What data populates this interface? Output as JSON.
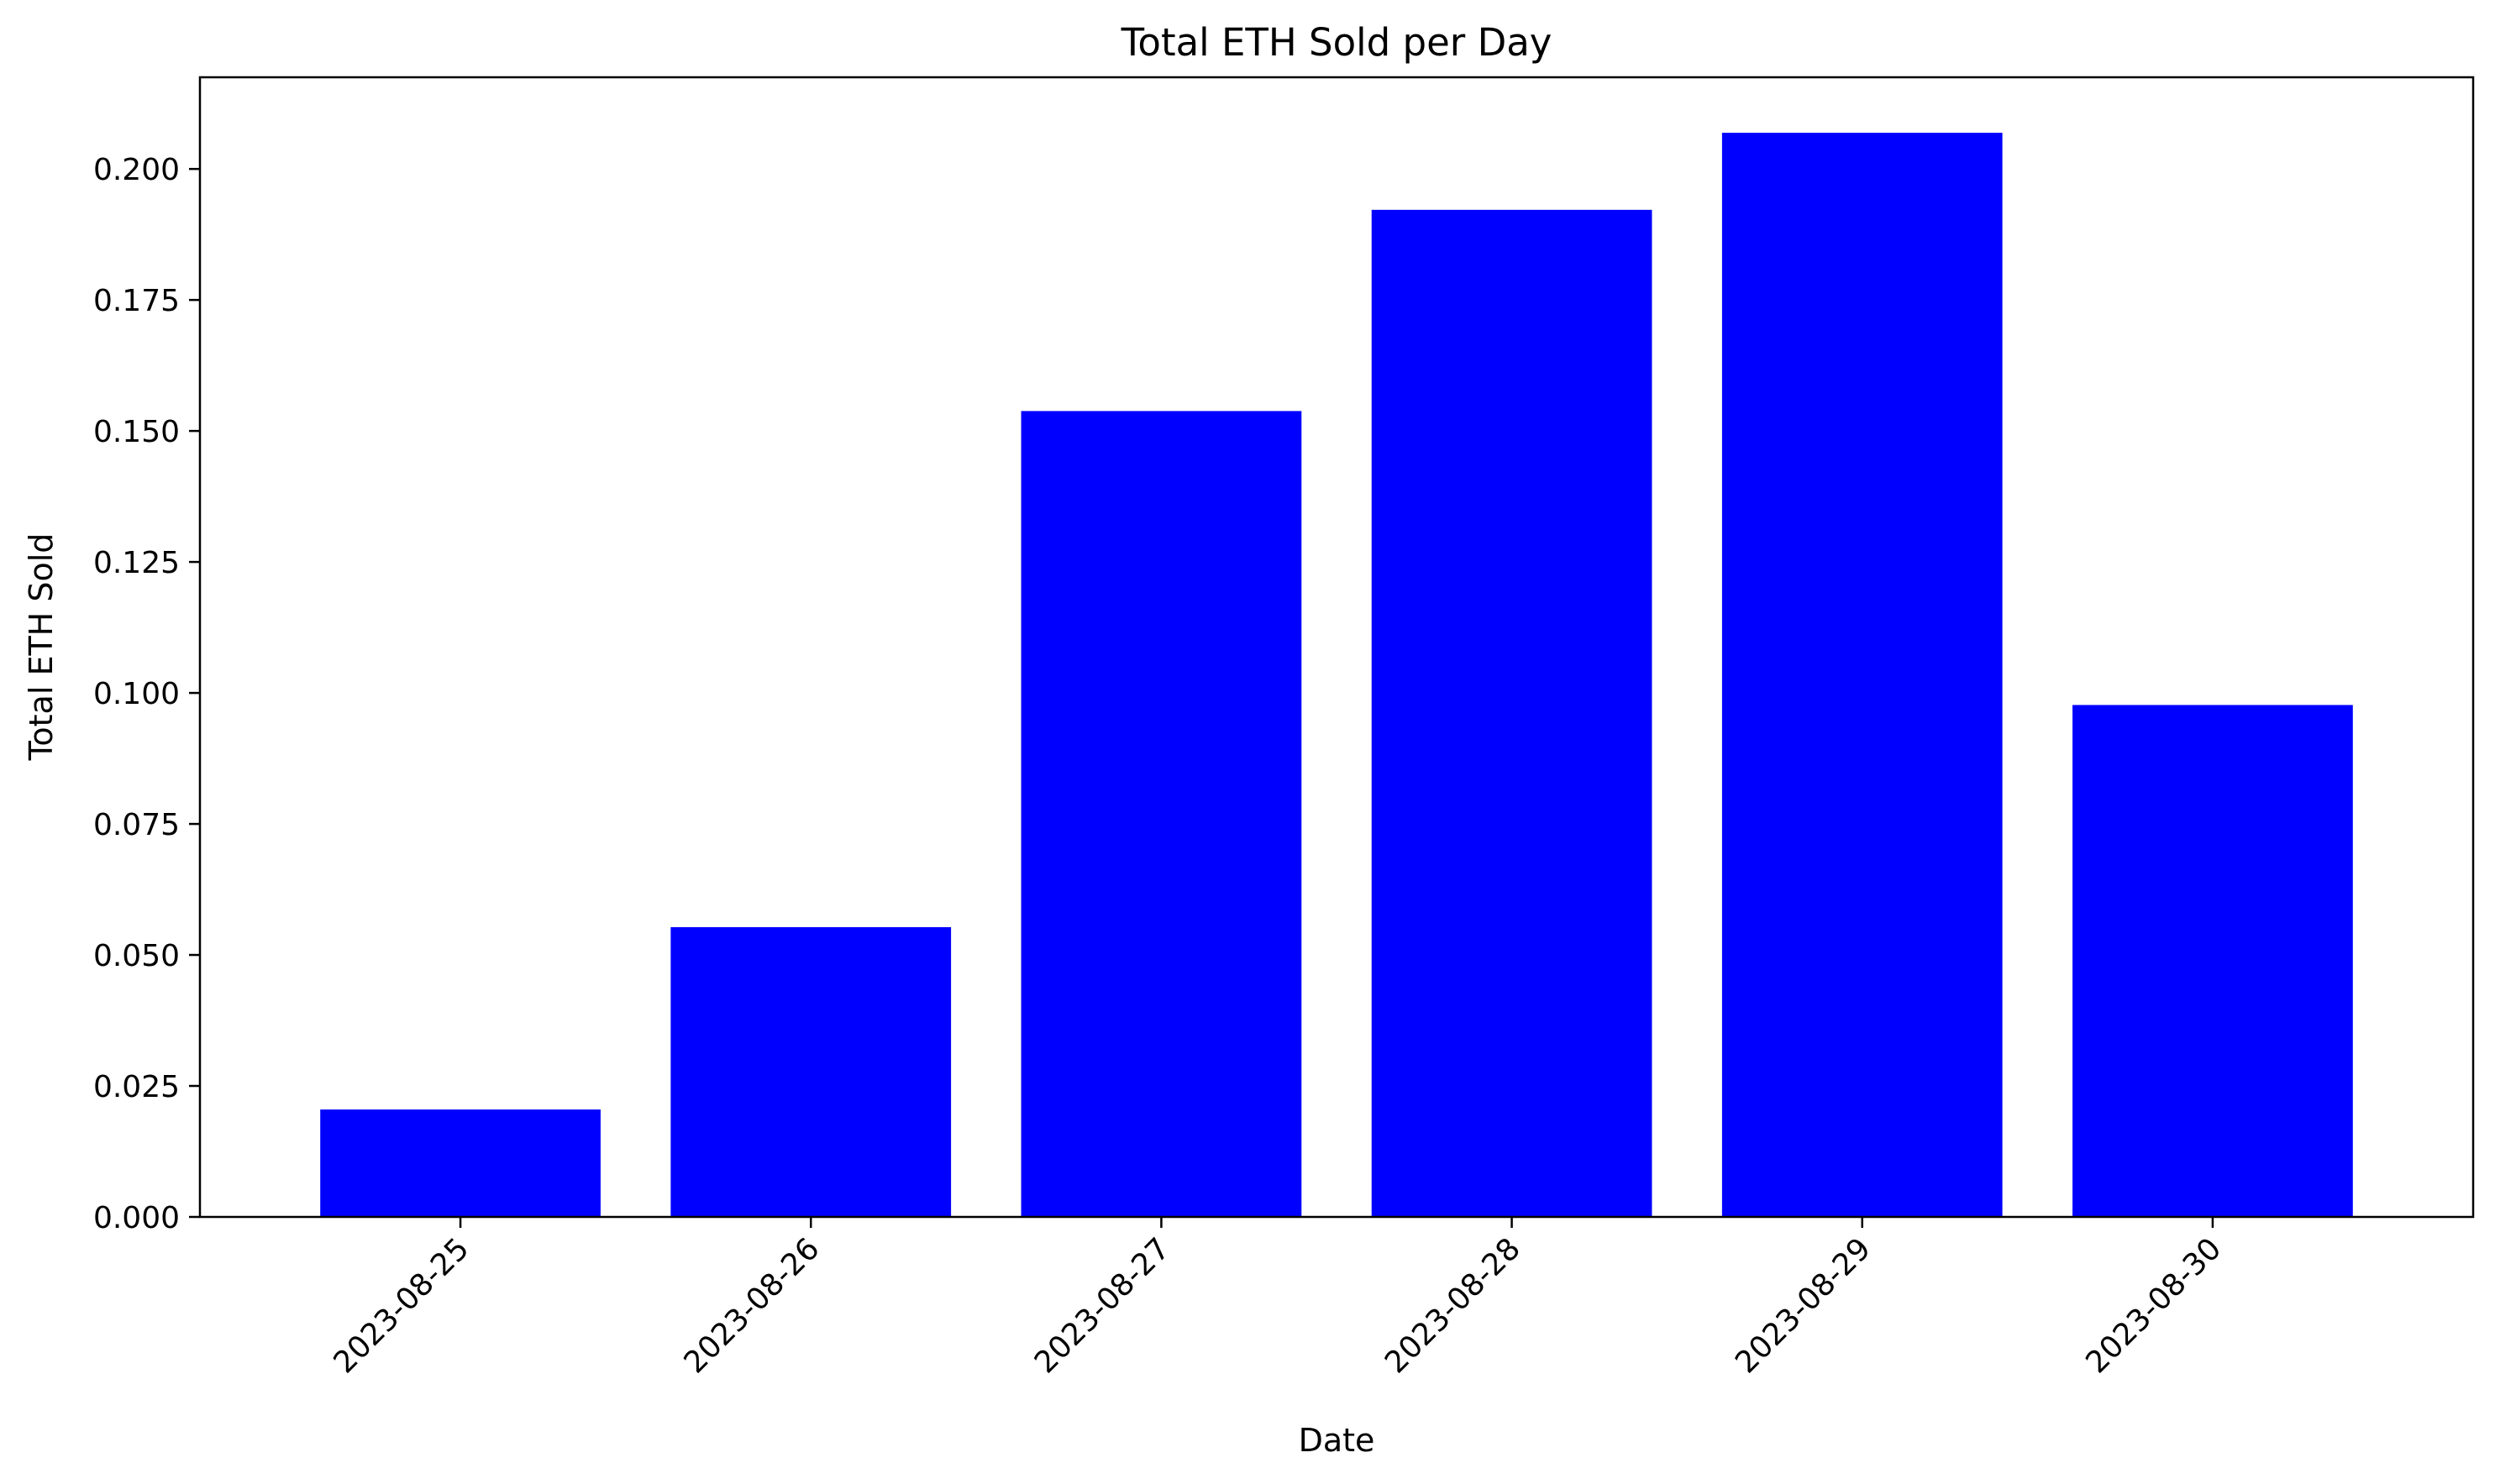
{
  "chart_data": {
    "type": "bar",
    "title": "Total ETH Sold per Day",
    "xlabel": "Date",
    "ylabel": "Total ETH Sold",
    "categories": [
      "2023-08-25",
      "2023-08-26",
      "2023-08-27",
      "2023-08-28",
      "2023-08-29",
      "2023-08-30"
    ],
    "values": [
      0.0205,
      0.0553,
      0.1538,
      0.1922,
      0.2069,
      0.0977
    ],
    "ylim": [
      0,
      0.2175
    ],
    "yticks": [
      0.0,
      0.025,
      0.05,
      0.075,
      0.1,
      0.125,
      0.15,
      0.175,
      0.2
    ],
    "ytick_labels": [
      "0.000",
      "0.025",
      "0.050",
      "0.075",
      "0.100",
      "0.125",
      "0.150",
      "0.175",
      "0.200"
    ],
    "bar_color": "#0000ff",
    "grid": false,
    "legend": "none"
  }
}
